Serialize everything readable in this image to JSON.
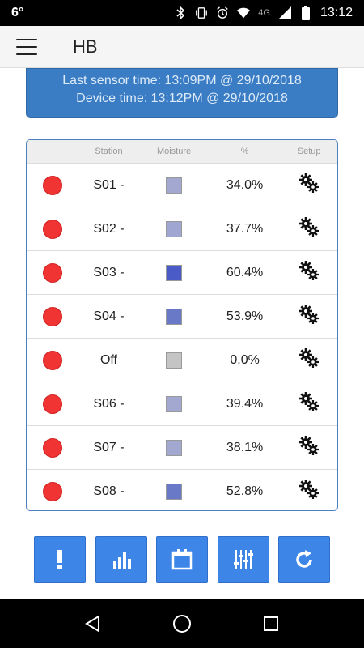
{
  "status_bar": {
    "left": "6°",
    "network": "4G",
    "time": "13:12",
    "icons": [
      "bluetooth-icon",
      "vibrate-icon",
      "alarm-icon",
      "wifi-icon",
      "signal-icon",
      "battery-icon"
    ]
  },
  "app_bar": {
    "title": "HB",
    "menu_icon": "hamburger-menu-icon"
  },
  "info": {
    "last_sensor": "Last sensor time: 13:09PM @ 29/10/2018",
    "device_time": "Device time: 13:12PM @ 29/10/2018"
  },
  "table": {
    "headers": {
      "status": "",
      "station": "Station",
      "moisture": "Moisture",
      "percent": "%",
      "setup": "Setup"
    },
    "rows": [
      {
        "station": "S01 -",
        "percent": "34.0%",
        "swatch": "#a3a8d0",
        "status_color": "#f03333"
      },
      {
        "station": "S02 -",
        "percent": "37.7%",
        "swatch": "#a0a6d2",
        "status_color": "#f03333"
      },
      {
        "station": "S03 -",
        "percent": "60.4%",
        "swatch": "#4a5bc8",
        "status_color": "#f03333"
      },
      {
        "station": "S04 -",
        "percent": "53.9%",
        "swatch": "#6a78c8",
        "status_color": "#f03333"
      },
      {
        "station": "Off",
        "percent": "0.0%",
        "swatch": "#c4c4c4",
        "status_color": "#f03333"
      },
      {
        "station": "S06 -",
        "percent": "39.4%",
        "swatch": "#a3a8d0",
        "status_color": "#f03333"
      },
      {
        "station": "S07 -",
        "percent": "38.1%",
        "swatch": "#a3a8d0",
        "status_color": "#f03333"
      },
      {
        "station": "S08 -",
        "percent": "52.8%",
        "swatch": "#6a78c8",
        "status_color": "#f03333"
      }
    ]
  },
  "buttons": [
    {
      "name": "alert-button",
      "icon": "exclamation-icon"
    },
    {
      "name": "chart-button",
      "icon": "bar-chart-icon"
    },
    {
      "name": "calendar-button",
      "icon": "calendar-icon"
    },
    {
      "name": "adjust-button",
      "icon": "sliders-icon"
    },
    {
      "name": "refresh-button",
      "icon": "refresh-icon"
    }
  ],
  "nav": {
    "back_icon": "back-triangle-icon",
    "home_icon": "home-circle-icon",
    "recents_icon": "recents-square-icon"
  },
  "colors": {
    "accent": "#3d86e8",
    "info_bg": "#3b7dc4",
    "status_red": "#f03333"
  }
}
